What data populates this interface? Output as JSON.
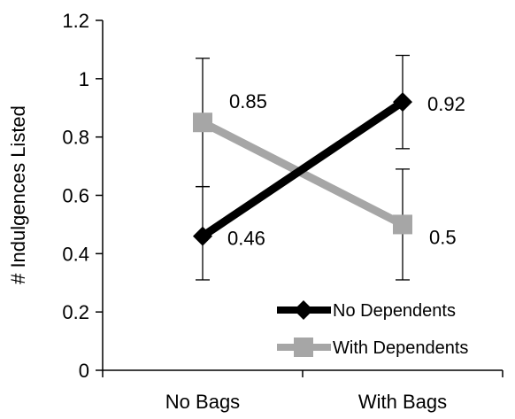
{
  "chart_data": {
    "type": "line",
    "categories": [
      "No Bags",
      "With Bags"
    ],
    "ylabel": "# Indulgences Listed",
    "ylim": [
      0,
      1.2
    ],
    "yticks": [
      0,
      0.2,
      0.4,
      0.6,
      0.8,
      1,
      1.2
    ],
    "ytick_labels": [
      "0",
      "0.2",
      "0.4",
      "0.6",
      "0.8",
      "1",
      "1.2"
    ],
    "grid": false,
    "legend_position": "bottom-right",
    "series": [
      {
        "name": "No Dependents",
        "values": [
          0.46,
          0.92
        ],
        "value_labels": [
          "0.46",
          "0.92"
        ],
        "error_low": [
          0.31,
          0.76
        ],
        "error_high": [
          0.63,
          1.08
        ],
        "color": "#000000",
        "marker": "diamond"
      },
      {
        "name": "With Dependents",
        "values": [
          0.85,
          0.5
        ],
        "value_labels": [
          "0.85",
          "0.5"
        ],
        "error_low": [
          0.63,
          0.31
        ],
        "error_high": [
          1.07,
          0.69
        ],
        "color": "#a6a6a6",
        "marker": "square"
      }
    ]
  }
}
